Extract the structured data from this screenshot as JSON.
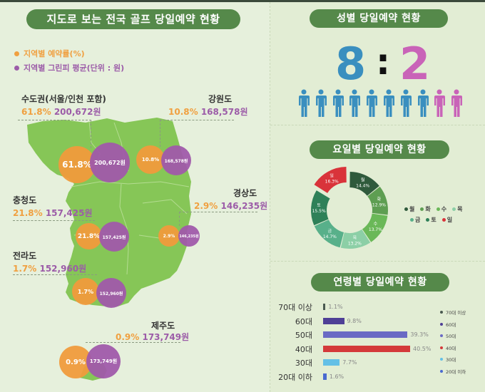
{
  "map_section": {
    "title": "지도로 보는 전국 골프 당일예약 현황",
    "legend": [
      {
        "label": "지역별 예약률(%)",
        "color": "#f0a040"
      },
      {
        "label": "지역별 그린피 평균(단위 : 원)",
        "color": "#9c5ca8"
      }
    ],
    "regions": [
      {
        "name": "수도권(서울/인천 포함)",
        "rate": "61.8%",
        "fee": "200,672원",
        "bubble_rate": "61.8%",
        "bubble_fee": "200,672원"
      },
      {
        "name": "강원도",
        "rate": "10.8%",
        "fee": "168,578원",
        "bubble_rate": "10.8%",
        "bubble_fee": "168,578원"
      },
      {
        "name": "충청도",
        "rate": "21.8%",
        "fee": "157,425원",
        "bubble_rate": "21.8%",
        "bubble_fee": "157,425원"
      },
      {
        "name": "경상도",
        "rate": "2.9%",
        "fee": "146,235원",
        "bubble_rate": "2.9%",
        "bubble_fee": "146,235원"
      },
      {
        "name": "전라도",
        "rate": "1.7%",
        "fee": "152,960원",
        "bubble_rate": "1.7%",
        "bubble_fee": "152,960원"
      },
      {
        "name": "제주도",
        "rate": "0.9%",
        "fee": "173,749원",
        "bubble_rate": "0.9%",
        "bubble_fee": "173,749원"
      }
    ]
  },
  "gender_section": {
    "title": "성별 당일예약 현황",
    "male_ratio": "8",
    "separator": ":",
    "female_ratio": "2",
    "male_color": "#3a8fbf",
    "female_color": "#c963b8"
  },
  "weekday_section": {
    "title": "요일별 당일예약 현황",
    "legend_row1": [
      "월",
      "화",
      "수",
      "목"
    ],
    "legend_row2": [
      "금",
      "토",
      "일"
    ]
  },
  "age_section": {
    "title": "연령별 당일예약 현황"
  },
  "chart_data": [
    {
      "type": "bubble-map",
      "title": "지도로 보는 전국 골프 당일예약 현황",
      "categories": [
        "수도권(서울/인천 포함)",
        "강원도",
        "충청도",
        "경상도",
        "전라도",
        "제주도"
      ],
      "series": [
        {
          "name": "지역별 예약률(%)",
          "values": [
            61.8,
            10.8,
            21.8,
            2.9,
            1.7,
            0.9
          ]
        },
        {
          "name": "지역별 그린피 평균(단위 : 원)",
          "values": [
            200672,
            168578,
            157425,
            146235,
            152960,
            173749
          ]
        }
      ]
    },
    {
      "type": "pictogram",
      "title": "성별 당일예약 현황",
      "categories": [
        "남성",
        "여성"
      ],
      "values": [
        8,
        2
      ]
    },
    {
      "type": "pie",
      "title": "요일별 당일예약 현황",
      "categories": [
        "월",
        "화",
        "수",
        "목",
        "금",
        "토",
        "일"
      ],
      "values": [
        14.4,
        12.9,
        13.7,
        13.2,
        14.7,
        15.5,
        16.3
      ],
      "labels": [
        "14.4%",
        "12.9%",
        "13.7%",
        "13.2%",
        "14.7%",
        "15.5%",
        "16.3%"
      ],
      "colors": [
        "#2f5a3c",
        "#5e9e52",
        "#6ab858",
        "#8ccfa6",
        "#58b08a",
        "#2e8058",
        "#d9333a"
      ],
      "legend_position": "right"
    },
    {
      "type": "bar",
      "orientation": "horizontal",
      "title": "연령별 당일예약 현황",
      "categories": [
        "70대 이상",
        "60대",
        "50대",
        "40대",
        "30대",
        "20대 이하"
      ],
      "values": [
        1.1,
        9.8,
        39.3,
        40.5,
        7.7,
        1.6
      ],
      "labels": [
        "1.1%",
        "9.8%",
        "39.3%",
        "40.5%",
        "7.7%",
        "1.6%"
      ],
      "colors": [
        "#4a5a50",
        "#4e3f96",
        "#6a6ac4",
        "#d43a3a",
        "#64c0e6",
        "#4a6ad0"
      ],
      "legend_position": "right"
    }
  ]
}
